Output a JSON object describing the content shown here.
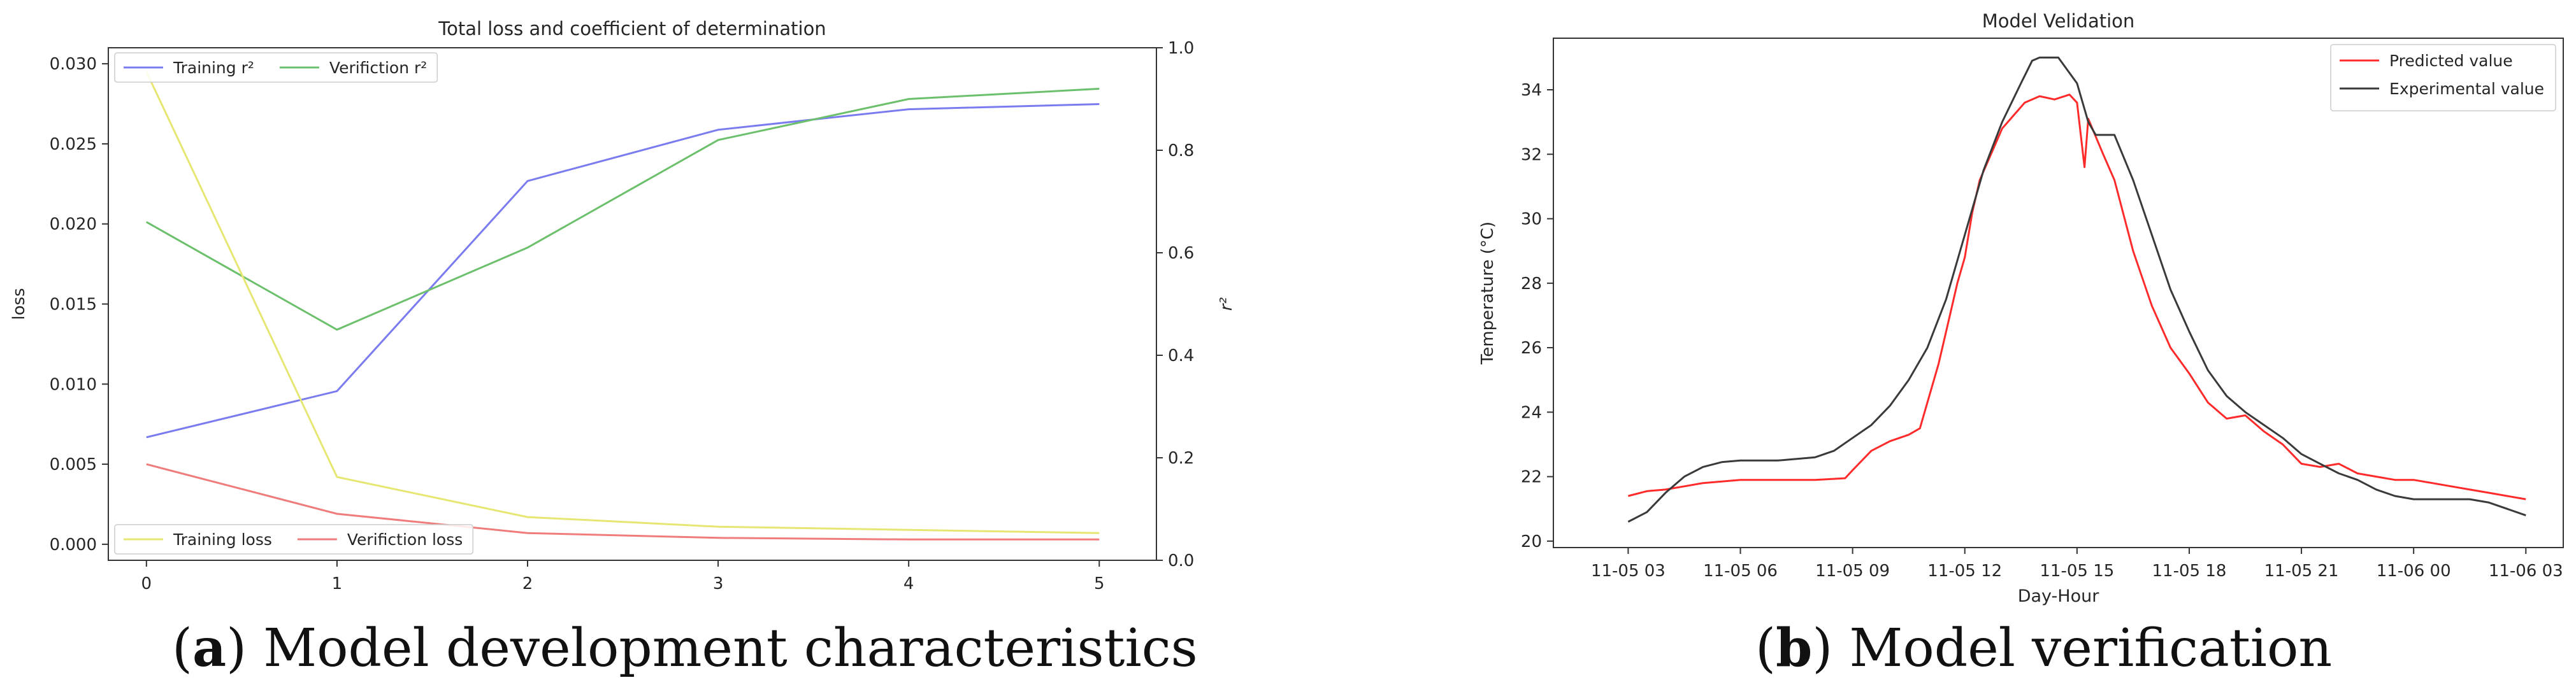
{
  "chart_data": [
    {
      "type": "line",
      "title": "Total loss and coefficient of determination",
      "xlabel": "",
      "ylabel": "loss",
      "ylabel_right": "r²",
      "x": [
        0,
        1,
        2,
        3,
        4,
        5
      ],
      "x_ticks": [
        "0",
        "1",
        "2",
        "3",
        "4",
        "5"
      ],
      "ylim": [
        -0.001,
        0.031
      ],
      "y_ticks": [
        "0.000",
        "0.005",
        "0.010",
        "0.015",
        "0.020",
        "0.025",
        "0.030"
      ],
      "ylim_right": [
        0.0,
        1.0
      ],
      "y_ticks_right": [
        "0.0",
        "0.2",
        "0.4",
        "0.6",
        "0.8",
        "1.0"
      ],
      "series": [
        {
          "name": "Training r²",
          "axis": "right",
          "color": "#7b7bf0",
          "values": [
            0.24,
            0.33,
            0.74,
            0.84,
            0.88,
            0.89
          ]
        },
        {
          "name": "Verifiction r²",
          "axis": "right",
          "color": "#6cc06c",
          "values": [
            0.66,
            0.45,
            0.61,
            0.82,
            0.9,
            0.92
          ]
        },
        {
          "name": "Training loss",
          "axis": "left",
          "color": "#e6e673",
          "values": [
            0.0295,
            0.0042,
            0.0017,
            0.0011,
            0.0009,
            0.0007
          ]
        },
        {
          "name": "Verifiction loss",
          "axis": "left",
          "color": "#f07b7b",
          "values": [
            0.005,
            0.0019,
            0.0007,
            0.0004,
            0.0003,
            0.0003
          ]
        }
      ],
      "legend_top": "top-left",
      "legend_bottom": "bottom-left"
    },
    {
      "type": "line",
      "title": "Model Velidation",
      "xlabel": "Day-Hour",
      "ylabel": "Temperature (°C)",
      "x_ticks": [
        "11-05 03",
        "11-05 06",
        "11-05 09",
        "11-05 12",
        "11-05 15",
        "11-05 18",
        "11-05 21",
        "11-06 00",
        "11-06 03"
      ],
      "x_tick_hours": [
        3,
        6,
        9,
        12,
        15,
        18,
        21,
        24,
        27
      ],
      "xlim_hours": [
        1.0,
        28.0
      ],
      "ylim": [
        19.8,
        35.6
      ],
      "y_ticks": [
        "20",
        "22",
        "24",
        "26",
        "28",
        "30",
        "32",
        "34"
      ],
      "series": [
        {
          "name": "Predicted value",
          "color": "#ff2a2a",
          "points": [
            [
              3.0,
              21.4
            ],
            [
              3.5,
              21.55
            ],
            [
              4.0,
              21.6
            ],
            [
              4.5,
              21.7
            ],
            [
              5.0,
              21.8
            ],
            [
              6.0,
              21.9
            ],
            [
              7.0,
              21.9
            ],
            [
              8.0,
              21.9
            ],
            [
              8.8,
              21.95
            ],
            [
              9.0,
              22.2
            ],
            [
              9.5,
              22.8
            ],
            [
              10.0,
              23.1
            ],
            [
              10.5,
              23.3
            ],
            [
              10.8,
              23.5
            ],
            [
              11.0,
              24.3
            ],
            [
              11.3,
              25.5
            ],
            [
              11.6,
              27.0
            ],
            [
              11.8,
              28.0
            ],
            [
              12.0,
              28.8
            ],
            [
              12.2,
              30.2
            ],
            [
              12.4,
              31.2
            ],
            [
              12.7,
              32.0
            ],
            [
              13.0,
              32.8
            ],
            [
              13.3,
              33.2
            ],
            [
              13.6,
              33.6
            ],
            [
              14.0,
              33.8
            ],
            [
              14.4,
              33.7
            ],
            [
              14.8,
              33.85
            ],
            [
              15.0,
              33.6
            ],
            [
              15.2,
              31.6
            ],
            [
              15.3,
              33.1
            ],
            [
              15.7,
              32.0
            ],
            [
              16.0,
              31.2
            ],
            [
              16.5,
              29.0
            ],
            [
              17.0,
              27.3
            ],
            [
              17.5,
              26.0
            ],
            [
              18.0,
              25.2
            ],
            [
              18.5,
              24.3
            ],
            [
              19.0,
              23.8
            ],
            [
              19.5,
              23.9
            ],
            [
              20.0,
              23.4
            ],
            [
              20.5,
              23.0
            ],
            [
              21.0,
              22.4
            ],
            [
              21.5,
              22.3
            ],
            [
              22.0,
              22.4
            ],
            [
              22.5,
              22.1
            ],
            [
              23.0,
              22.0
            ],
            [
              23.5,
              21.9
            ],
            [
              24.0,
              21.9
            ],
            [
              24.5,
              21.8
            ],
            [
              25.0,
              21.7
            ],
            [
              25.5,
              21.6
            ],
            [
              26.0,
              21.5
            ],
            [
              26.5,
              21.4
            ],
            [
              27.0,
              21.3
            ]
          ]
        },
        {
          "name": "Experimental value",
          "color": "#3a3a3a",
          "points": [
            [
              3.0,
              20.6
            ],
            [
              3.5,
              20.9
            ],
            [
              4.0,
              21.5
            ],
            [
              4.5,
              22.0
            ],
            [
              5.0,
              22.3
            ],
            [
              5.5,
              22.45
            ],
            [
              6.0,
              22.5
            ],
            [
              7.0,
              22.5
            ],
            [
              8.0,
              22.6
            ],
            [
              8.5,
              22.8
            ],
            [
              9.0,
              23.2
            ],
            [
              9.5,
              23.6
            ],
            [
              10.0,
              24.2
            ],
            [
              10.5,
              25.0
            ],
            [
              11.0,
              26.0
            ],
            [
              11.5,
              27.5
            ],
            [
              12.0,
              29.5
            ],
            [
              12.5,
              31.5
            ],
            [
              13.0,
              33.0
            ],
            [
              13.5,
              34.2
            ],
            [
              13.8,
              34.9
            ],
            [
              14.0,
              35.0
            ],
            [
              14.5,
              35.0
            ],
            [
              15.0,
              34.2
            ],
            [
              15.3,
              33.0
            ],
            [
              15.5,
              32.6
            ],
            [
              16.0,
              32.6
            ],
            [
              16.5,
              31.2
            ],
            [
              17.0,
              29.5
            ],
            [
              17.5,
              27.8
            ],
            [
              18.0,
              26.5
            ],
            [
              18.5,
              25.3
            ],
            [
              19.0,
              24.5
            ],
            [
              19.5,
              24.0
            ],
            [
              20.0,
              23.6
            ],
            [
              20.5,
              23.2
            ],
            [
              21.0,
              22.7
            ],
            [
              21.5,
              22.4
            ],
            [
              22.0,
              22.1
            ],
            [
              22.5,
              21.9
            ],
            [
              23.0,
              21.6
            ],
            [
              23.5,
              21.4
            ],
            [
              24.0,
              21.3
            ],
            [
              24.5,
              21.3
            ],
            [
              25.0,
              21.3
            ],
            [
              25.5,
              21.3
            ],
            [
              26.0,
              21.2
            ],
            [
              26.5,
              21.0
            ],
            [
              27.0,
              20.8
            ]
          ]
        }
      ],
      "legend": "top-right"
    }
  ],
  "captions": {
    "a_letter": "a",
    "a_text": "Model development characteristics",
    "b_letter": "b",
    "b_text": "Model verification"
  }
}
